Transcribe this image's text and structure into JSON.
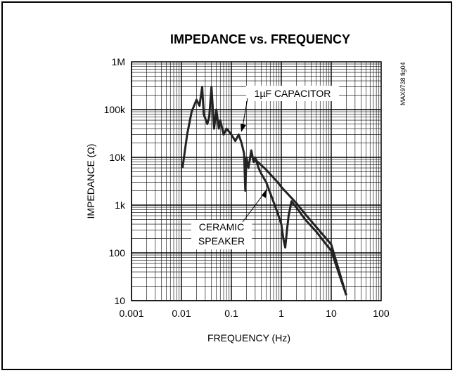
{
  "chart_data": {
    "type": "line",
    "title": "IMPEDANCE vs. FREQUENCY",
    "xlabel": "FREQUENCY (Hz)",
    "ylabel": "IMPEDANCE (Ω)",
    "x_scale": "log",
    "y_scale": "log",
    "xlim": [
      0.001,
      100
    ],
    "ylim": [
      10,
      1000000
    ],
    "x_tick_labels": [
      "0.001",
      "0.01",
      "0.1",
      "1",
      "10",
      "100"
    ],
    "y_tick_labels": [
      "10",
      "100",
      "1k",
      "10k",
      "100k",
      "1M"
    ],
    "grid": true,
    "figure_id": "MAX9738 fig04",
    "annotations": [
      {
        "text": "1µF CAPACITOR"
      },
      {
        "text_lines": [
          "CERAMIC",
          "SPEAKER"
        ]
      }
    ],
    "series": [
      {
        "name": "1µF CAPACITOR",
        "x": [
          0.3,
          0.5,
          0.8,
          1.0,
          2.0,
          3.0,
          5.0,
          10.0,
          20.0
        ],
        "y": [
          9000,
          5500,
          3200,
          2400,
          1100,
          650,
          350,
          150,
          13
        ]
      },
      {
        "name": "CERAMIC SPEAKER",
        "x": [
          0.0105,
          0.013,
          0.016,
          0.02,
          0.023,
          0.026,
          0.028,
          0.033,
          0.036,
          0.04,
          0.045,
          0.05,
          0.056,
          0.06,
          0.07,
          0.08,
          0.1,
          0.12,
          0.14,
          0.16,
          0.18,
          0.19,
          0.2,
          0.22,
          0.25,
          0.28,
          0.3,
          0.35,
          0.4,
          0.5,
          0.6,
          0.8,
          1.0,
          1.1,
          1.2,
          1.3,
          1.4,
          1.6,
          2.0,
          3.0,
          5.0,
          10.0,
          20.0
        ],
        "y": [
          6000,
          30000,
          90000,
          160000,
          120000,
          300000,
          80000,
          50000,
          70000,
          300000,
          40000,
          100000,
          40000,
          60000,
          30000,
          40000,
          30000,
          22000,
          30000,
          20000,
          12000,
          2000,
          10000,
          6000,
          14000,
          8000,
          10000,
          6000,
          4500,
          3000,
          1800,
          800,
          400,
          200,
          130,
          300,
          600,
          1200,
          900,
          500,
          280,
          110,
          13
        ]
      }
    ]
  }
}
